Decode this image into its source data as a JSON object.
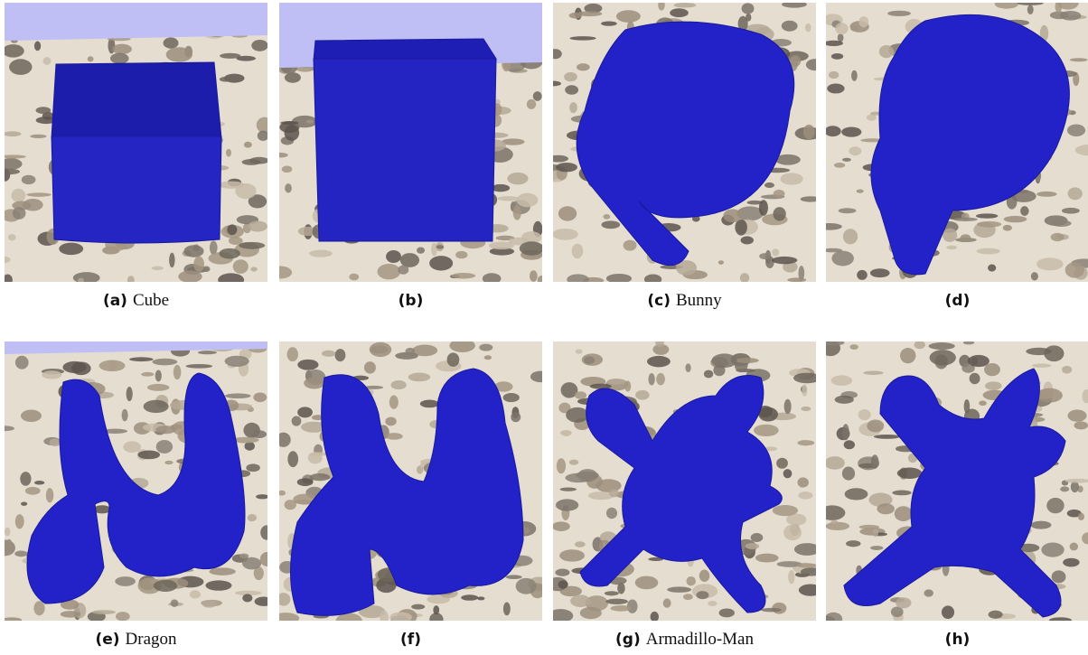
{
  "figure": {
    "panels": [
      {
        "label": "(a)",
        "caption": "Cube"
      },
      {
        "label": "(b)"
      },
      {
        "label": "(c)",
        "caption": "Bunny"
      },
      {
        "label": "(d)"
      },
      {
        "label": "(e)",
        "caption": "Dragon"
      },
      {
        "label": "(f)"
      },
      {
        "label": "(g)",
        "caption": "Armadillo-Man"
      },
      {
        "label": "(h)"
      }
    ]
  }
}
